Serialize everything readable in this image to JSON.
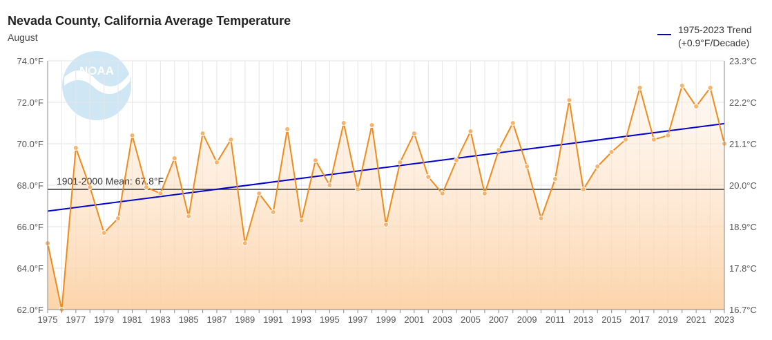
{
  "chart_data": {
    "type": "line",
    "title": "Nevada County, California Average Temperature",
    "subtitle": "August",
    "logo_text": "NOAA",
    "x": [
      1975,
      1976,
      1977,
      1978,
      1979,
      1980,
      1981,
      1982,
      1983,
      1984,
      1985,
      1986,
      1987,
      1988,
      1989,
      1990,
      1991,
      1992,
      1993,
      1994,
      1995,
      1996,
      1997,
      1998,
      1999,
      2000,
      2001,
      2002,
      2003,
      2004,
      2005,
      2006,
      2007,
      2008,
      2009,
      2010,
      2011,
      2012,
      2013,
      2014,
      2015,
      2016,
      2017,
      2018,
      2019,
      2020,
      2021,
      2022,
      2023
    ],
    "values": [
      65.2,
      62.0,
      69.8,
      67.9,
      65.7,
      66.4,
      70.4,
      67.9,
      67.6,
      69.3,
      66.5,
      70.5,
      69.1,
      70.2,
      65.2,
      67.6,
      66.7,
      70.7,
      66.3,
      69.2,
      68.0,
      71.0,
      67.8,
      70.9,
      66.1,
      69.1,
      70.5,
      68.4,
      67.6,
      69.2,
      70.6,
      67.6,
      69.7,
      71.0,
      68.9,
      66.4,
      68.3,
      72.1,
      67.8,
      68.9,
      69.6,
      70.2,
      72.7,
      70.2,
      70.4,
      72.8,
      71.8,
      72.7,
      70.0
    ],
    "series_color": "#f28a1a",
    "trend": {
      "label": "1975-2023 Trend",
      "sublabel": "(+0.9°F/Decade)",
      "start": [
        1975,
        66.75
      ],
      "end": [
        2023,
        70.97
      ],
      "color": "#0000cc"
    },
    "mean": {
      "label": "1901-2000 Mean: 67.8°F",
      "value": 67.8,
      "color": "#333333"
    },
    "xlabel": "",
    "ylabel": "",
    "ylim": [
      62,
      74
    ],
    "y_ticks": [
      62,
      64,
      66,
      68,
      70,
      72,
      74
    ],
    "y_tick_labels": [
      "62.0°F",
      "64.0°F",
      "66.0°F",
      "68.0°F",
      "70.0°F",
      "72.0°F",
      "74.0°F"
    ],
    "y2_tick_labels": [
      "16.7°C",
      "17.8°C",
      "18.9°C",
      "20.0°C",
      "21.1°C",
      "22.2°C",
      "23.3°C"
    ],
    "x_ticks": [
      1975,
      1977,
      1979,
      1981,
      1983,
      1985,
      1987,
      1989,
      1991,
      1993,
      1995,
      1997,
      1999,
      2001,
      2003,
      2005,
      2007,
      2009,
      2011,
      2013,
      2015,
      2017,
      2019,
      2021,
      2023
    ],
    "grid": true,
    "legend_position": "top-right"
  }
}
